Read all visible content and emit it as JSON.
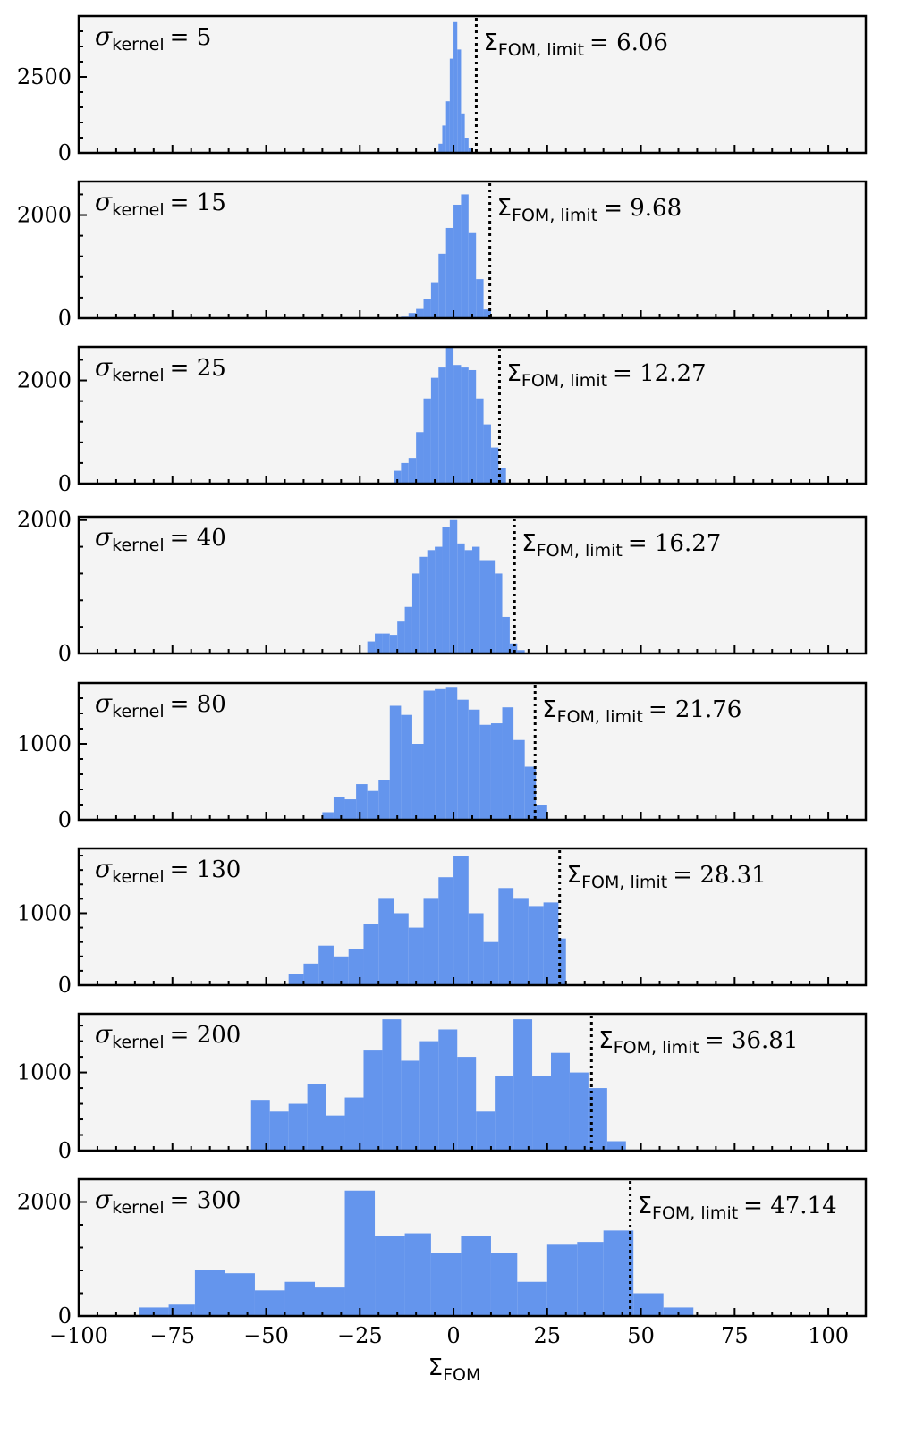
{
  "chart_data": {
    "type": "histogram-stack",
    "xlabel": "Σ",
    "xlabel_subscript": "FOM",
    "xlim": [
      -100,
      110
    ],
    "x_ticks": [
      -100,
      -75,
      -50,
      -25,
      0,
      25,
      50,
      75,
      100
    ],
    "x_tick_labels": [
      "−100",
      "−75",
      "−50",
      "−25",
      "0",
      "25",
      "50",
      "75",
      "100"
    ],
    "bar_color": "#6495ed",
    "panel_bg": "#f4f4f4",
    "limit_line_style": "dotted",
    "annotation_symbol": "σ",
    "annotation_subscript": "kernel",
    "limit_symbol": "Σ",
    "limit_subscript": "FOM, limit",
    "panels": [
      {
        "kernel_label": "= 5",
        "limit_label": "= 6.06",
        "limit": 6.06,
        "ylim": [
          0,
          4500
        ],
        "yticks": [
          0,
          2500
        ],
        "ytick_labels": [
          "0",
          "2500"
        ],
        "bins": [
          {
            "x0": -5,
            "x1": -4,
            "v": 50
          },
          {
            "x0": -4,
            "x1": -3,
            "v": 300
          },
          {
            "x0": -3,
            "x1": -2,
            "v": 900
          },
          {
            "x0": -2,
            "x1": -1,
            "v": 1700
          },
          {
            "x0": -1,
            "x1": 0,
            "v": 3100
          },
          {
            "x0": 0,
            "x1": 1,
            "v": 4300
          },
          {
            "x0": 1,
            "x1": 2,
            "v": 3400
          },
          {
            "x0": 2,
            "x1": 3,
            "v": 1300
          },
          {
            "x0": 3,
            "x1": 4,
            "v": 500
          },
          {
            "x0": 4,
            "x1": 5,
            "v": 150
          }
        ]
      },
      {
        "kernel_label": "= 15",
        "limit_label": "= 9.68",
        "limit": 9.68,
        "ylim": [
          0,
          2650
        ],
        "yticks": [
          0,
          2000
        ],
        "ytick_labels": [
          "0",
          "2000"
        ],
        "bins": [
          {
            "x0": -14,
            "x1": -12,
            "v": 30
          },
          {
            "x0": -12,
            "x1": -10,
            "v": 100
          },
          {
            "x0": -10,
            "x1": -8,
            "v": 180
          },
          {
            "x0": -8,
            "x1": -6,
            "v": 380
          },
          {
            "x0": -6,
            "x1": -4,
            "v": 700
          },
          {
            "x0": -4,
            "x1": -2,
            "v": 1250
          },
          {
            "x0": -2,
            "x1": 0,
            "v": 1750
          },
          {
            "x0": 0,
            "x1": 2,
            "v": 2200
          },
          {
            "x0": 2,
            "x1": 4,
            "v": 2400
          },
          {
            "x0": 4,
            "x1": 6,
            "v": 1650
          },
          {
            "x0": 6,
            "x1": 8,
            "v": 760
          },
          {
            "x0": 8,
            "x1": 10,
            "v": 170
          }
        ]
      },
      {
        "kernel_label": "= 25",
        "limit_label": "= 12.27",
        "limit": 12.27,
        "ylim": [
          0,
          2650
        ],
        "yticks": [
          0,
          2000
        ],
        "ytick_labels": [
          "0",
          "2000"
        ],
        "bins": [
          {
            "x0": -16,
            "x1": -14,
            "v": 250
          },
          {
            "x0": -14,
            "x1": -12,
            "v": 400
          },
          {
            "x0": -12,
            "x1": -10,
            "v": 500
          },
          {
            "x0": -10,
            "x1": -8,
            "v": 1000
          },
          {
            "x0": -8,
            "x1": -6,
            "v": 1650
          },
          {
            "x0": -6,
            "x1": -4,
            "v": 2050
          },
          {
            "x0": -4,
            "x1": -2,
            "v": 2250
          },
          {
            "x0": -2,
            "x1": 0,
            "v": 2650
          },
          {
            "x0": 0,
            "x1": 2,
            "v": 2300
          },
          {
            "x0": 2,
            "x1": 4,
            "v": 2250
          },
          {
            "x0": 4,
            "x1": 6,
            "v": 2200
          },
          {
            "x0": 6,
            "x1": 8,
            "v": 1650
          },
          {
            "x0": 8,
            "x1": 10,
            "v": 1150
          },
          {
            "x0": 10,
            "x1": 12,
            "v": 700
          },
          {
            "x0": 12,
            "x1": 14,
            "v": 300
          }
        ]
      },
      {
        "kernel_label": "= 40",
        "limit_label": "= 16.27",
        "limit": 16.27,
        "ylim": [
          0,
          2050
        ],
        "yticks": [
          0,
          2000
        ],
        "ytick_labels": [
          "0",
          "2000"
        ],
        "bins": [
          {
            "x0": -23,
            "x1": -21,
            "v": 180
          },
          {
            "x0": -21,
            "x1": -19,
            "v": 300
          },
          {
            "x0": -19,
            "x1": -17,
            "v": 300
          },
          {
            "x0": -17,
            "x1": -15,
            "v": 280
          },
          {
            "x0": -15,
            "x1": -13,
            "v": 480
          },
          {
            "x0": -13,
            "x1": -11,
            "v": 700
          },
          {
            "x0": -11,
            "x1": -9,
            "v": 1200
          },
          {
            "x0": -9,
            "x1": -7,
            "v": 1450
          },
          {
            "x0": -7,
            "x1": -5,
            "v": 1550
          },
          {
            "x0": -5,
            "x1": -3,
            "v": 1600
          },
          {
            "x0": -3,
            "x1": -1,
            "v": 1900
          },
          {
            "x0": -1,
            "x1": 1,
            "v": 2000
          },
          {
            "x0": 1,
            "x1": 3,
            "v": 1650
          },
          {
            "x0": 3,
            "x1": 5,
            "v": 1550
          },
          {
            "x0": 5,
            "x1": 7,
            "v": 1600
          },
          {
            "x0": 7,
            "x1": 9,
            "v": 1400
          },
          {
            "x0": 9,
            "x1": 11,
            "v": 1400
          },
          {
            "x0": 11,
            "x1": 13,
            "v": 1200
          },
          {
            "x0": 13,
            "x1": 15,
            "v": 550
          },
          {
            "x0": 15,
            "x1": 17,
            "v": 150
          },
          {
            "x0": 17,
            "x1": 19,
            "v": 50
          }
        ]
      },
      {
        "kernel_label": "= 80",
        "limit_label": "= 21.76",
        "limit": 21.76,
        "ylim": [
          0,
          1800
        ],
        "yticks": [
          0,
          1000
        ],
        "ytick_labels": [
          "0",
          "1000"
        ],
        "bins": [
          {
            "x0": -35,
            "x1": -32,
            "v": 100
          },
          {
            "x0": -32,
            "x1": -29,
            "v": 300
          },
          {
            "x0": -29,
            "x1": -26,
            "v": 270
          },
          {
            "x0": -26,
            "x1": -23,
            "v": 470
          },
          {
            "x0": -23,
            "x1": -20,
            "v": 380
          },
          {
            "x0": -20,
            "x1": -17,
            "v": 520
          },
          {
            "x0": -17,
            "x1": -14,
            "v": 1500
          },
          {
            "x0": -14,
            "x1": -11,
            "v": 1380
          },
          {
            "x0": -11,
            "x1": -8,
            "v": 1000
          },
          {
            "x0": -8,
            "x1": -5,
            "v": 1700
          },
          {
            "x0": -5,
            "x1": -2,
            "v": 1720
          },
          {
            "x0": -2,
            "x1": 1,
            "v": 1750
          },
          {
            "x0": 1,
            "x1": 4,
            "v": 1580
          },
          {
            "x0": 4,
            "x1": 7,
            "v": 1450
          },
          {
            "x0": 7,
            "x1": 10,
            "v": 1250
          },
          {
            "x0": 10,
            "x1": 13,
            "v": 1270
          },
          {
            "x0": 13,
            "x1": 16,
            "v": 1480
          },
          {
            "x0": 16,
            "x1": 19,
            "v": 1050
          },
          {
            "x0": 19,
            "x1": 22,
            "v": 700
          },
          {
            "x0": 22,
            "x1": 25,
            "v": 200
          }
        ]
      },
      {
        "kernel_label": "= 130",
        "limit_label": "= 28.31",
        "limit": 28.31,
        "ylim": [
          0,
          1900
        ],
        "yticks": [
          0,
          1000
        ],
        "ytick_labels": [
          "0",
          "1000"
        ],
        "bins": [
          {
            "x0": -44,
            "x1": -40,
            "v": 150
          },
          {
            "x0": -40,
            "x1": -36,
            "v": 300
          },
          {
            "x0": -36,
            "x1": -32,
            "v": 550
          },
          {
            "x0": -32,
            "x1": -28,
            "v": 400
          },
          {
            "x0": -28,
            "x1": -24,
            "v": 500
          },
          {
            "x0": -24,
            "x1": -20,
            "v": 850
          },
          {
            "x0": -20,
            "x1": -16,
            "v": 1200
          },
          {
            "x0": -16,
            "x1": -12,
            "v": 1000
          },
          {
            "x0": -12,
            "x1": -8,
            "v": 800
          },
          {
            "x0": -8,
            "x1": -4,
            "v": 1200
          },
          {
            "x0": -4,
            "x1": 0,
            "v": 1500
          },
          {
            "x0": 0,
            "x1": 4,
            "v": 1800
          },
          {
            "x0": 4,
            "x1": 8,
            "v": 1000
          },
          {
            "x0": 8,
            "x1": 12,
            "v": 600
          },
          {
            "x0": 12,
            "x1": 16,
            "v": 1350
          },
          {
            "x0": 16,
            "x1": 20,
            "v": 1200
          },
          {
            "x0": 20,
            "x1": 24,
            "v": 1100
          },
          {
            "x0": 24,
            "x1": 28,
            "v": 1150
          },
          {
            "x0": 28,
            "x1": 30,
            "v": 650
          }
        ]
      },
      {
        "kernel_label": "= 200",
        "limit_label": "= 36.81",
        "limit": 36.81,
        "ylim": [
          0,
          1750
        ],
        "yticks": [
          0,
          1000
        ],
        "ytick_labels": [
          "0",
          "1000"
        ],
        "bins": [
          {
            "x0": -54,
            "x1": -49,
            "v": 650
          },
          {
            "x0": -49,
            "x1": -44,
            "v": 500
          },
          {
            "x0": -44,
            "x1": -39,
            "v": 600
          },
          {
            "x0": -39,
            "x1": -34,
            "v": 850
          },
          {
            "x0": -34,
            "x1": -29,
            "v": 450
          },
          {
            "x0": -29,
            "x1": -24,
            "v": 680
          },
          {
            "x0": -24,
            "x1": -19,
            "v": 1280
          },
          {
            "x0": -19,
            "x1": -14,
            "v": 1680
          },
          {
            "x0": -14,
            "x1": -9,
            "v": 1150
          },
          {
            "x0": -9,
            "x1": -4,
            "v": 1400
          },
          {
            "x0": -4,
            "x1": 1,
            "v": 1550
          },
          {
            "x0": 1,
            "x1": 6,
            "v": 1200
          },
          {
            "x0": 6,
            "x1": 11,
            "v": 500
          },
          {
            "x0": 11,
            "x1": 16,
            "v": 950
          },
          {
            "x0": 16,
            "x1": 21,
            "v": 1680
          },
          {
            "x0": 21,
            "x1": 26,
            "v": 950
          },
          {
            "x0": 26,
            "x1": 31,
            "v": 1250
          },
          {
            "x0": 31,
            "x1": 36,
            "v": 1000
          },
          {
            "x0": 36,
            "x1": 41,
            "v": 800
          },
          {
            "x0": 41,
            "x1": 46,
            "v": 120
          }
        ]
      },
      {
        "kernel_label": "= 300",
        "limit_label": "= 47.14",
        "limit": 47.14,
        "ylim": [
          0,
          2400
        ],
        "yticks": [
          0,
          2000
        ],
        "ytick_labels": [
          "0",
          "2000"
        ],
        "bins": [
          {
            "x0": -84,
            "x1": -76,
            "v": 150
          },
          {
            "x0": -76,
            "x1": -69,
            "v": 200
          },
          {
            "x0": -69,
            "x1": -61,
            "v": 800
          },
          {
            "x0": -61,
            "x1": -53,
            "v": 750
          },
          {
            "x0": -53,
            "x1": -45,
            "v": 450
          },
          {
            "x0": -45,
            "x1": -37,
            "v": 600
          },
          {
            "x0": -37,
            "x1": -29,
            "v": 500
          },
          {
            "x0": -29,
            "x1": -21,
            "v": 2200
          },
          {
            "x0": -21,
            "x1": -13,
            "v": 1400
          },
          {
            "x0": -13,
            "x1": -6,
            "v": 1450
          },
          {
            "x0": -6,
            "x1": 2,
            "v": 1100
          },
          {
            "x0": 2,
            "x1": 10,
            "v": 1400
          },
          {
            "x0": 10,
            "x1": 17,
            "v": 1100
          },
          {
            "x0": 17,
            "x1": 25,
            "v": 600
          },
          {
            "x0": 25,
            "x1": 33,
            "v": 1250
          },
          {
            "x0": 33,
            "x1": 40,
            "v": 1300
          },
          {
            "x0": 40,
            "x1": 48,
            "v": 1500
          },
          {
            "x0": 48,
            "x1": 56,
            "v": 400
          },
          {
            "x0": 56,
            "x1": 64,
            "v": 150
          }
        ]
      }
    ]
  }
}
